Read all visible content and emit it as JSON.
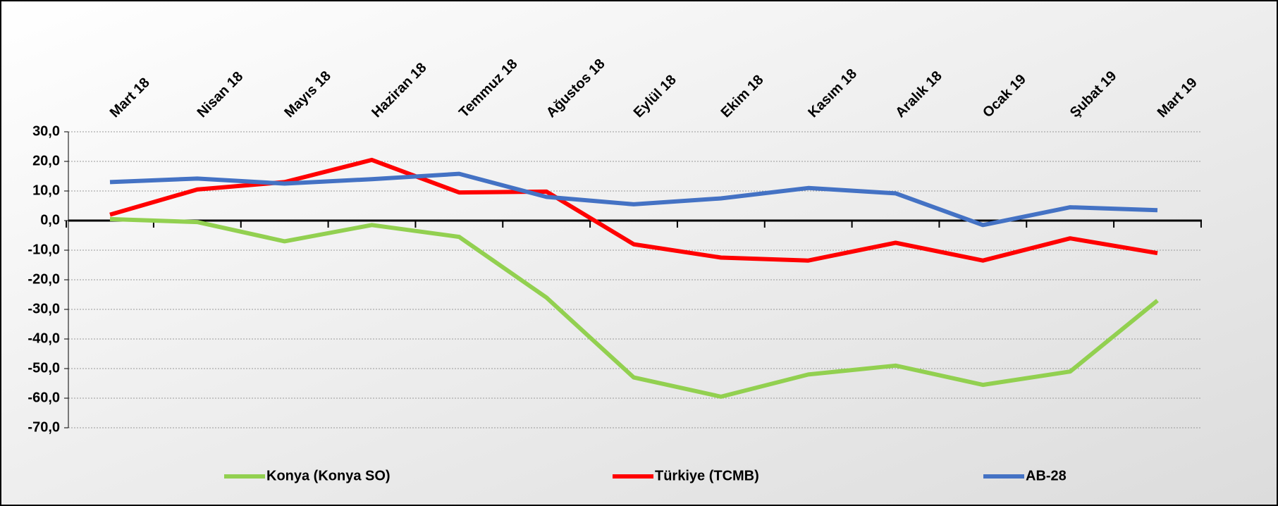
{
  "chart_data": {
    "type": "line",
    "categories": [
      "Mart 18",
      "Nisan 18",
      "Mayıs 18",
      "Haziran 18",
      "Temmuz 18",
      "Ağustos 18",
      "Eylül 18",
      "Ekim 18",
      "Kasım 18",
      "Aralık 18",
      "Ocak 19",
      "Şubat 19",
      "Mart 19"
    ],
    "series": [
      {
        "name": "Konya (Konya SO)",
        "color": "#92d050",
        "values": [
          0.5,
          -0.5,
          -7,
          -1.5,
          -5.5,
          -26,
          -53,
          -59.5,
          -52,
          -49,
          -55.5,
          -51,
          -27
        ]
      },
      {
        "name": "Türkiye (TCMB)",
        "color": "#ff0000",
        "values": [
          2,
          10.5,
          13,
          20.5,
          9.5,
          9.8,
          -8,
          -12.5,
          -13.5,
          -7.5,
          -13.5,
          -6,
          -11
        ]
      },
      {
        "name": "AB-28",
        "color": "#4472c4",
        "values": [
          13,
          14.2,
          12.5,
          14,
          15.8,
          8,
          5.5,
          7.5,
          11,
          9.2,
          -1.5,
          4.5,
          3.5
        ]
      }
    ],
    "ylim": [
      -70,
      30
    ],
    "yticks": [
      {
        "value": 30,
        "label": "30,0"
      },
      {
        "value": 20,
        "label": "20,0"
      },
      {
        "value": 10,
        "label": "10,0"
      },
      {
        "value": 0,
        "label": "0,0"
      },
      {
        "value": -10,
        "label": "-10,0"
      },
      {
        "value": -20,
        "label": "-20,0"
      },
      {
        "value": -30,
        "label": "-30,0"
      },
      {
        "value": -40,
        "label": "-40,0"
      },
      {
        "value": -50,
        "label": "-50,0"
      },
      {
        "value": -60,
        "label": "-60,0"
      },
      {
        "value": -70,
        "label": "-70,0"
      }
    ],
    "grid": true,
    "legend": "bottom"
  }
}
